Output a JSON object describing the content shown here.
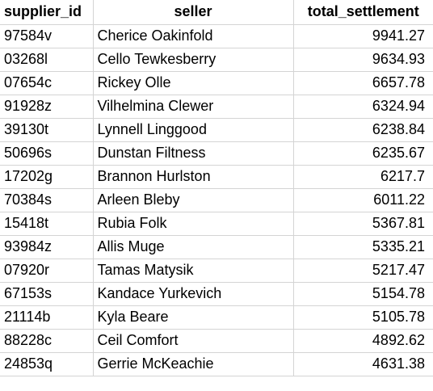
{
  "columns": {
    "supplier_id": "supplier_id",
    "seller": "seller",
    "total_settlement": "total_settlement"
  },
  "rows": [
    {
      "supplier_id": "97584v",
      "seller": "Cherice Oakinfold",
      "total_settlement": "9941.27"
    },
    {
      "supplier_id": "03268l",
      "seller": "Cello Tewkesberry",
      "total_settlement": "9634.93"
    },
    {
      "supplier_id": "07654c",
      "seller": "Rickey Olle",
      "total_settlement": "6657.78"
    },
    {
      "supplier_id": "91928z",
      "seller": "Vilhelmina Clewer",
      "total_settlement": "6324.94"
    },
    {
      "supplier_id": "39130t",
      "seller": "Lynnell Linggood",
      "total_settlement": "6238.84"
    },
    {
      "supplier_id": "50696s",
      "seller": "Dunstan Filtness",
      "total_settlement": "6235.67"
    },
    {
      "supplier_id": "17202g",
      "seller": "Brannon Hurlston",
      "total_settlement": "6217.7"
    },
    {
      "supplier_id": "70384s",
      "seller": "Arleen Bleby",
      "total_settlement": "6011.22"
    },
    {
      "supplier_id": "15418t",
      "seller": "Rubia Folk",
      "total_settlement": "5367.81"
    },
    {
      "supplier_id": "93984z",
      "seller": "Allis Muge",
      "total_settlement": "5335.21"
    },
    {
      "supplier_id": "07920r",
      "seller": "Tamas Matysik",
      "total_settlement": "5217.47"
    },
    {
      "supplier_id": "67153s",
      "seller": "Kandace Yurkevich",
      "total_settlement": "5154.78"
    },
    {
      "supplier_id": "21114b",
      "seller": "Kyla Beare",
      "total_settlement": "5105.78"
    },
    {
      "supplier_id": "88228c",
      "seller": "Ceil Comfort",
      "total_settlement": "4892.62"
    },
    {
      "supplier_id": "24853q",
      "seller": "Gerrie McKeachie",
      "total_settlement": "4631.38"
    }
  ],
  "colors": {
    "gridline": "#d4d4d4",
    "text": "#000000",
    "background": "#ffffff"
  }
}
